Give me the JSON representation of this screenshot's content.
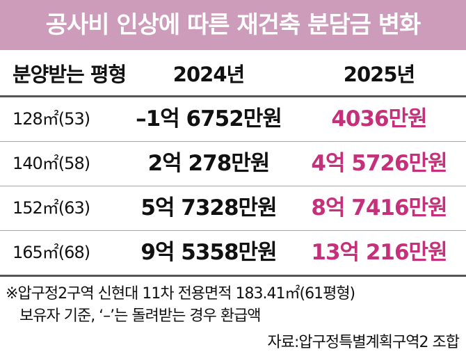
{
  "header": {
    "title": "공사비 인상에 따른 재건축 분담금 변화"
  },
  "table": {
    "columns": [
      "분양받는 평형",
      "2024년",
      "2025년"
    ],
    "rows": [
      [
        "128㎡(53)",
        "–1억 6752만원",
        "4036만원"
      ],
      [
        "140㎡(58)",
        "2억 278만원",
        "4억 5726만원"
      ],
      [
        "152㎡(63)",
        "5억 7328만원",
        "8억 7416만원"
      ],
      [
        "165㎡(68)",
        "9억 5358만원",
        "13억 216만원"
      ]
    ]
  },
  "footnote": [
    "※압구정2구역 신현대 11차 전용면적 183.41㎡(61평형)",
    "보유자 기준, ‘–’는 돌려받는 경우 환급액"
  ],
  "source": "자료:압구정특별계획구역2 조합"
}
